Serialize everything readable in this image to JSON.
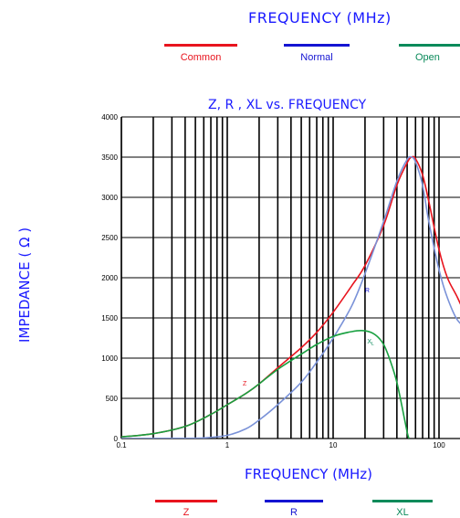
{
  "top_header": "FREQUENCY (MHz)",
  "top_legend": [
    {
      "label": "Common",
      "color": "#e8141e"
    },
    {
      "label": "Normal",
      "color": "#1414d2"
    },
    {
      "label": "Open",
      "color": "#0a8a5a"
    }
  ],
  "bottom_legend": [
    {
      "label": "Z",
      "color": "#e8141e"
    },
    {
      "label": "R",
      "color": "#1414d2"
    },
    {
      "label": "XL",
      "color": "#0a8a5a"
    }
  ],
  "chart_data": {
    "type": "line",
    "title": "Z, R , XL vs. FREQUENCY",
    "xlabel": "FREQUENCY (MHz)",
    "ylabel": "IMPEDANCE ( Ω )",
    "x_scale": "log",
    "xlim": [
      0.1,
      200
    ],
    "ylim": [
      0,
      4000
    ],
    "x_ticks": [
      "0.1",
      "1",
      "10",
      "100"
    ],
    "y_ticks": [
      "0",
      "500",
      "1000",
      "1500",
      "2000",
      "2500",
      "3000",
      "3500",
      "4000"
    ],
    "grid": true,
    "series": [
      {
        "name": "Z",
        "color": "#e8141e",
        "points": [
          [
            0.1,
            20
          ],
          [
            0.2,
            60
          ],
          [
            0.4,
            150
          ],
          [
            0.7,
            300
          ],
          [
            1,
            420
          ],
          [
            1.5,
            560
          ],
          [
            2,
            680
          ],
          [
            3,
            880
          ],
          [
            5,
            1130
          ],
          [
            7,
            1320
          ],
          [
            10,
            1570
          ],
          [
            15,
            1900
          ],
          [
            20,
            2150
          ],
          [
            30,
            2650
          ],
          [
            40,
            3150
          ],
          [
            50,
            3430
          ],
          [
            55,
            3500
          ],
          [
            60,
            3480
          ],
          [
            70,
            3280
          ],
          [
            80,
            2950
          ],
          [
            100,
            2350
          ],
          [
            120,
            2000
          ],
          [
            150,
            1750
          ],
          [
            200,
            1380
          ]
        ]
      },
      {
        "name": "R",
        "color": "#7a92d8",
        "points": [
          [
            0.1,
            0
          ],
          [
            0.3,
            2
          ],
          [
            0.6,
            8
          ],
          [
            1,
            40
          ],
          [
            1.5,
            120
          ],
          [
            2,
            230
          ],
          [
            3,
            420
          ],
          [
            5,
            700
          ],
          [
            7,
            950
          ],
          [
            10,
            1250
          ],
          [
            15,
            1650
          ],
          [
            20,
            2050
          ],
          [
            30,
            2700
          ],
          [
            40,
            3200
          ],
          [
            50,
            3470
          ],
          [
            55,
            3500
          ],
          [
            60,
            3440
          ],
          [
            70,
            3150
          ],
          [
            80,
            2700
          ],
          [
            100,
            2100
          ],
          [
            120,
            1750
          ],
          [
            150,
            1470
          ],
          [
            200,
            1330
          ]
        ]
      },
      {
        "name": "XL",
        "color": "#18a040",
        "points": [
          [
            0.1,
            20
          ],
          [
            0.2,
            60
          ],
          [
            0.4,
            150
          ],
          [
            0.7,
            300
          ],
          [
            1,
            420
          ],
          [
            1.5,
            560
          ],
          [
            2,
            680
          ],
          [
            3,
            860
          ],
          [
            5,
            1050
          ],
          [
            7,
            1170
          ],
          [
            10,
            1270
          ],
          [
            15,
            1330
          ],
          [
            20,
            1340
          ],
          [
            25,
            1290
          ],
          [
            30,
            1170
          ],
          [
            35,
            950
          ],
          [
            40,
            700
          ],
          [
            45,
            380
          ],
          [
            50,
            80
          ],
          [
            52,
            0
          ]
        ]
      }
    ],
    "annotations": [
      {
        "text": "Z",
        "x": 1.4,
        "y": 660,
        "color": "#e8141e"
      },
      {
        "text": "R",
        "x": 20,
        "y": 1820,
        "color": "#1414d2"
      },
      {
        "text": "X",
        "sub": "L",
        "x": 21,
        "y": 1180,
        "color": "#0a8a5a"
      }
    ]
  }
}
